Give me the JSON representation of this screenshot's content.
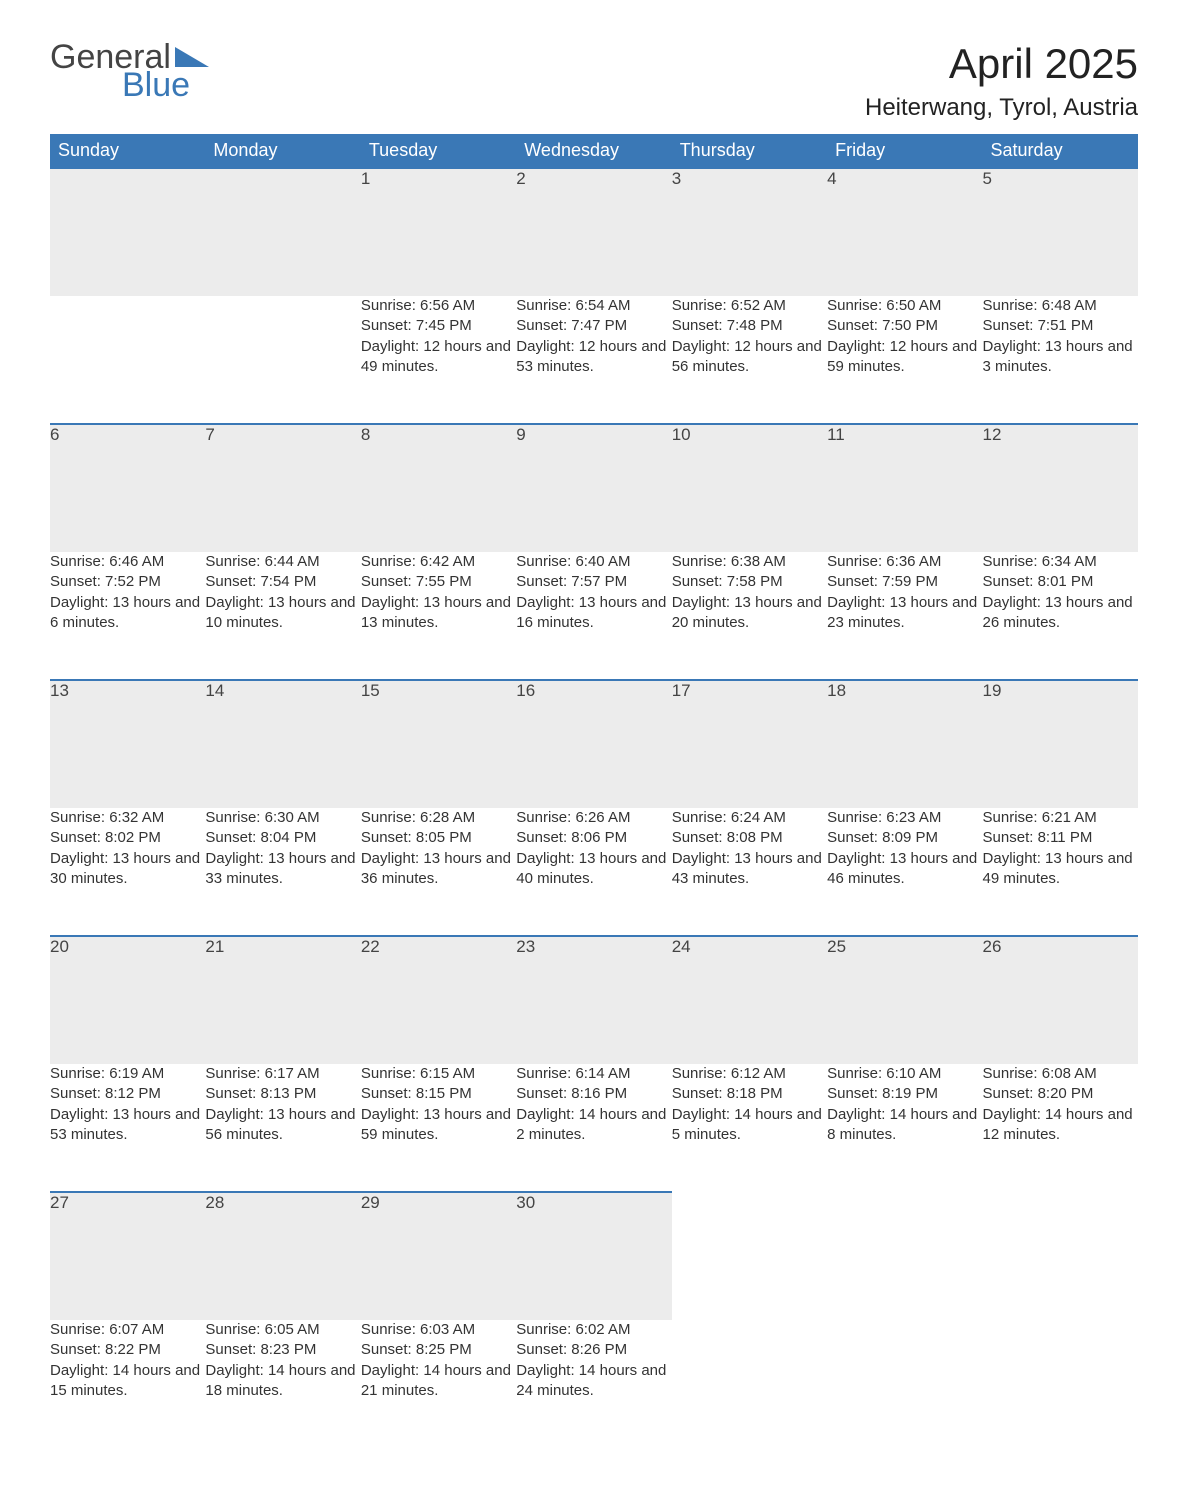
{
  "logo": {
    "text1": "General",
    "text2": "Blue",
    "color_general": "#444444",
    "color_blue": "#3a78b6"
  },
  "title": "April 2025",
  "location": "Heiterwang, Tyrol, Austria",
  "colors": {
    "header_bg": "#3a78b6",
    "header_text": "#ffffff",
    "daynum_bg": "#ececec",
    "daynum_border": "#3a78b6",
    "body_text": "#333333",
    "background": "#ffffff"
  },
  "weekdays": [
    "Sunday",
    "Monday",
    "Tuesday",
    "Wednesday",
    "Thursday",
    "Friday",
    "Saturday"
  ],
  "weeks": [
    [
      null,
      null,
      {
        "n": "1",
        "sunrise": "6:56 AM",
        "sunset": "7:45 PM",
        "daylight": "12 hours and 49 minutes."
      },
      {
        "n": "2",
        "sunrise": "6:54 AM",
        "sunset": "7:47 PM",
        "daylight": "12 hours and 53 minutes."
      },
      {
        "n": "3",
        "sunrise": "6:52 AM",
        "sunset": "7:48 PM",
        "daylight": "12 hours and 56 minutes."
      },
      {
        "n": "4",
        "sunrise": "6:50 AM",
        "sunset": "7:50 PM",
        "daylight": "12 hours and 59 minutes."
      },
      {
        "n": "5",
        "sunrise": "6:48 AM",
        "sunset": "7:51 PM",
        "daylight": "13 hours and 3 minutes."
      }
    ],
    [
      {
        "n": "6",
        "sunrise": "6:46 AM",
        "sunset": "7:52 PM",
        "daylight": "13 hours and 6 minutes."
      },
      {
        "n": "7",
        "sunrise": "6:44 AM",
        "sunset": "7:54 PM",
        "daylight": "13 hours and 10 minutes."
      },
      {
        "n": "8",
        "sunrise": "6:42 AM",
        "sunset": "7:55 PM",
        "daylight": "13 hours and 13 minutes."
      },
      {
        "n": "9",
        "sunrise": "6:40 AM",
        "sunset": "7:57 PM",
        "daylight": "13 hours and 16 minutes."
      },
      {
        "n": "10",
        "sunrise": "6:38 AM",
        "sunset": "7:58 PM",
        "daylight": "13 hours and 20 minutes."
      },
      {
        "n": "11",
        "sunrise": "6:36 AM",
        "sunset": "7:59 PM",
        "daylight": "13 hours and 23 minutes."
      },
      {
        "n": "12",
        "sunrise": "6:34 AM",
        "sunset": "8:01 PM",
        "daylight": "13 hours and 26 minutes."
      }
    ],
    [
      {
        "n": "13",
        "sunrise": "6:32 AM",
        "sunset": "8:02 PM",
        "daylight": "13 hours and 30 minutes."
      },
      {
        "n": "14",
        "sunrise": "6:30 AM",
        "sunset": "8:04 PM",
        "daylight": "13 hours and 33 minutes."
      },
      {
        "n": "15",
        "sunrise": "6:28 AM",
        "sunset": "8:05 PM",
        "daylight": "13 hours and 36 minutes."
      },
      {
        "n": "16",
        "sunrise": "6:26 AM",
        "sunset": "8:06 PM",
        "daylight": "13 hours and 40 minutes."
      },
      {
        "n": "17",
        "sunrise": "6:24 AM",
        "sunset": "8:08 PM",
        "daylight": "13 hours and 43 minutes."
      },
      {
        "n": "18",
        "sunrise": "6:23 AM",
        "sunset": "8:09 PM",
        "daylight": "13 hours and 46 minutes."
      },
      {
        "n": "19",
        "sunrise": "6:21 AM",
        "sunset": "8:11 PM",
        "daylight": "13 hours and 49 minutes."
      }
    ],
    [
      {
        "n": "20",
        "sunrise": "6:19 AM",
        "sunset": "8:12 PM",
        "daylight": "13 hours and 53 minutes."
      },
      {
        "n": "21",
        "sunrise": "6:17 AM",
        "sunset": "8:13 PM",
        "daylight": "13 hours and 56 minutes."
      },
      {
        "n": "22",
        "sunrise": "6:15 AM",
        "sunset": "8:15 PM",
        "daylight": "13 hours and 59 minutes."
      },
      {
        "n": "23",
        "sunrise": "6:14 AM",
        "sunset": "8:16 PM",
        "daylight": "14 hours and 2 minutes."
      },
      {
        "n": "24",
        "sunrise": "6:12 AM",
        "sunset": "8:18 PM",
        "daylight": "14 hours and 5 minutes."
      },
      {
        "n": "25",
        "sunrise": "6:10 AM",
        "sunset": "8:19 PM",
        "daylight": "14 hours and 8 minutes."
      },
      {
        "n": "26",
        "sunrise": "6:08 AM",
        "sunset": "8:20 PM",
        "daylight": "14 hours and 12 minutes."
      }
    ],
    [
      {
        "n": "27",
        "sunrise": "6:07 AM",
        "sunset": "8:22 PM",
        "daylight": "14 hours and 15 minutes."
      },
      {
        "n": "28",
        "sunrise": "6:05 AM",
        "sunset": "8:23 PM",
        "daylight": "14 hours and 18 minutes."
      },
      {
        "n": "29",
        "sunrise": "6:03 AM",
        "sunset": "8:25 PM",
        "daylight": "14 hours and 21 minutes."
      },
      {
        "n": "30",
        "sunrise": "6:02 AM",
        "sunset": "8:26 PM",
        "daylight": "14 hours and 24 minutes."
      },
      null,
      null,
      null
    ]
  ],
  "labels": {
    "sunrise": "Sunrise: ",
    "sunset": "Sunset: ",
    "daylight": "Daylight: "
  }
}
